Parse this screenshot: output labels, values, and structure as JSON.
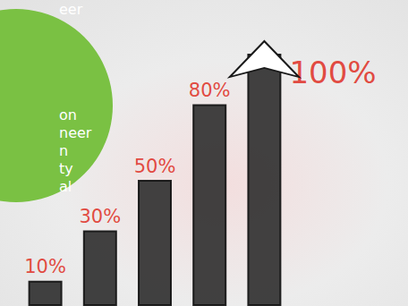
{
  "chart_data": {
    "type": "bar",
    "categories": [
      null,
      null,
      null,
      null,
      null
    ],
    "values": [
      10,
      30,
      50,
      80,
      100
    ],
    "value_labels": [
      "10%",
      "30%",
      "50%",
      "80%",
      "100%"
    ],
    "data_labels": true,
    "color": "#2e2e2e",
    "ylim": [
      0,
      100
    ],
    "tick_labels": false,
    "grid": false,
    "annotations": [
      "eer",
      "on",
      "neer",
      "n",
      "ty",
      "al"
    ]
  }
}
